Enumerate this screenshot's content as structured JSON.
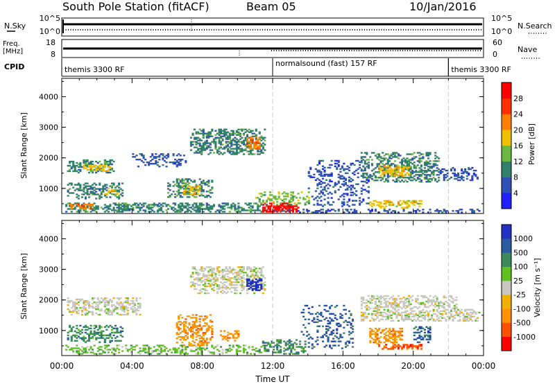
{
  "header": {
    "station": "South Pole Station (fitACF)",
    "beam": "Beam 05",
    "date": "10/Jan/2016"
  },
  "small_panels": {
    "nsky_label": "N.Sky",
    "nsky_ticks": [
      "10^5",
      "10^0"
    ],
    "nsearch_label": "N.Search",
    "nsearch_ticks": [
      "10^5",
      "10^0"
    ],
    "freq_label_1": "Freq.",
    "freq_label_2": "[MHz]",
    "freq_ticks": [
      "18",
      "8"
    ],
    "nave_label": "Nave",
    "nave_ticks": [
      "60",
      "0"
    ],
    "cpid_label": "CPID"
  },
  "cpid_segments": [
    {
      "label": "themis 3300 RF",
      "start_h": 0.0,
      "end_h": 12.0
    },
    {
      "label": "normalsound (fast) 157 RF",
      "start_h": 12.0,
      "end_h": 22.0
    },
    {
      "label": "themis 3300 RF",
      "start_h": 22.0,
      "end_h": 24.0
    }
  ],
  "colors": {
    "power": [
      "#2020ff",
      "#3050b8",
      "#30806a",
      "#6ab840",
      "#f0c000",
      "#ff8000",
      "#ff3000",
      "#ff0000"
    ],
    "velocity": [
      "#ff0000",
      "#ff5000",
      "#ff9000",
      "#f0b000",
      "#c8c8c0",
      "#60c020",
      "#3a8a5a",
      "#2a5aa0",
      "#2030c0"
    ]
  },
  "chart_data": [
    {
      "type": "heatmap",
      "name": "power",
      "xlabel": "",
      "ylabel": "Slant Range [km]",
      "xlim": [
        0,
        24
      ],
      "ylim": [
        180,
        4600
      ],
      "yticks": [
        "1000",
        "2000",
        "3000",
        "4000"
      ],
      "colorbar_label": "Power [dB]",
      "colorbar_ticks": [
        "4",
        "8",
        "12",
        "16",
        "20",
        "24",
        "28"
      ],
      "regions": [
        {
          "t0": 0.3,
          "t1": 3.0,
          "r0": 1500,
          "r1": 1950,
          "level": 2,
          "density": 0.55
        },
        {
          "t0": 1.2,
          "t1": 2.8,
          "r0": 1550,
          "r1": 1750,
          "level": 4,
          "density": 0.55
        },
        {
          "t0": 0.3,
          "t1": 3.5,
          "r0": 650,
          "r1": 1150,
          "level": 2,
          "density": 0.45
        },
        {
          "t0": 2.4,
          "t1": 3.2,
          "r0": 800,
          "r1": 1000,
          "level": 4,
          "density": 0.5
        },
        {
          "t0": 0.2,
          "t1": 11.5,
          "r0": 220,
          "r1": 520,
          "level": 2,
          "density": 0.55
        },
        {
          "t0": 0.4,
          "t1": 1.8,
          "r0": 320,
          "r1": 480,
          "level": 5,
          "density": 0.55
        },
        {
          "t0": 4.0,
          "t1": 7.0,
          "r0": 1700,
          "r1": 2150,
          "level": 1,
          "density": 0.35
        },
        {
          "t0": 6.0,
          "t1": 8.5,
          "r0": 700,
          "r1": 1300,
          "level": 2,
          "density": 0.45
        },
        {
          "t0": 6.8,
          "t1": 7.8,
          "r0": 800,
          "r1": 1100,
          "level": 4,
          "density": 0.5
        },
        {
          "t0": 7.3,
          "t1": 11.5,
          "r0": 2100,
          "r1": 2950,
          "level": 2,
          "density": 0.55
        },
        {
          "t0": 10.5,
          "t1": 11.2,
          "r0": 2300,
          "r1": 2700,
          "level": 5,
          "density": 0.6
        },
        {
          "t0": 11.4,
          "t1": 13.4,
          "r0": 220,
          "r1": 500,
          "level": 7,
          "density": 0.75
        },
        {
          "t0": 11.0,
          "t1": 14.0,
          "r0": 450,
          "r1": 900,
          "level": 3,
          "density": 0.35
        },
        {
          "t0": 14.0,
          "t1": 17.5,
          "r0": 400,
          "r1": 1900,
          "level": 1,
          "density": 0.25
        },
        {
          "t0": 17.0,
          "t1": 21.5,
          "r0": 1200,
          "r1": 2150,
          "level": 2,
          "density": 0.5
        },
        {
          "t0": 18.0,
          "t1": 19.8,
          "r0": 1400,
          "r1": 1750,
          "level": 4,
          "density": 0.55
        },
        {
          "t0": 17.5,
          "t1": 20.5,
          "r0": 350,
          "r1": 600,
          "level": 4,
          "density": 0.5
        },
        {
          "t0": 21.5,
          "t1": 23.7,
          "r0": 1250,
          "r1": 1700,
          "level": 1,
          "density": 0.45
        },
        {
          "t0": 12.0,
          "t1": 23.8,
          "r0": 200,
          "r1": 300,
          "level": 1,
          "density": 0.4
        }
      ]
    },
    {
      "type": "heatmap",
      "name": "velocity",
      "xlabel": "Time UT",
      "ylabel": "Slant Range [km]",
      "xlim": [
        0,
        24
      ],
      "ylim": [
        180,
        4600
      ],
      "xticks": [
        "00:00",
        "04:00",
        "08:00",
        "12:00",
        "16:00",
        "20:00",
        "00:00"
      ],
      "yticks": [
        "1000",
        "2000",
        "3000",
        "4000"
      ],
      "colorbar_label": "Velocity [m s⁻¹]",
      "colorbar_ticks": [
        "1000",
        "500",
        "100",
        "25",
        "-25",
        "-100",
        "-500",
        "-1000"
      ],
      "regions": [
        {
          "t0": 0.3,
          "t1": 4.5,
          "r0": 1500,
          "r1": 2050,
          "level": 4,
          "density": 0.5
        },
        {
          "t0": 0.3,
          "t1": 3.5,
          "r0": 600,
          "r1": 1150,
          "level": 6,
          "density": 0.4
        },
        {
          "t0": 0.2,
          "t1": 11.5,
          "r0": 220,
          "r1": 520,
          "level": 5,
          "density": 0.4
        },
        {
          "t0": 6.5,
          "t1": 8.5,
          "r0": 500,
          "r1": 1500,
          "level": 2,
          "density": 0.5
        },
        {
          "t0": 9.0,
          "t1": 10.0,
          "r0": 650,
          "r1": 1000,
          "level": 2,
          "density": 0.45
        },
        {
          "t0": 7.3,
          "t1": 11.5,
          "r0": 2200,
          "r1": 3100,
          "level": 4,
          "density": 0.5
        },
        {
          "t0": 10.5,
          "t1": 11.3,
          "r0": 2300,
          "r1": 2700,
          "level": 8,
          "density": 0.75
        },
        {
          "t0": 11.4,
          "t1": 13.8,
          "r0": 220,
          "r1": 700,
          "level": 6,
          "density": 0.45
        },
        {
          "t0": 13.5,
          "t1": 16.5,
          "r0": 400,
          "r1": 1800,
          "level": 7,
          "density": 0.2
        },
        {
          "t0": 17.5,
          "t1": 19.5,
          "r0": 550,
          "r1": 1050,
          "level": 2,
          "density": 0.5
        },
        {
          "t0": 18.0,
          "t1": 20.5,
          "r0": 380,
          "r1": 560,
          "level": 1,
          "density": 0.6
        },
        {
          "t0": 17.0,
          "t1": 22.5,
          "r0": 1300,
          "r1": 2150,
          "level": 4,
          "density": 0.5
        },
        {
          "t0": 20.0,
          "t1": 21.0,
          "r0": 600,
          "r1": 1100,
          "level": 7,
          "density": 0.5
        },
        {
          "t0": 22.0,
          "t1": 23.8,
          "r0": 1300,
          "r1": 1700,
          "level": 4,
          "density": 0.45
        }
      ]
    }
  ]
}
